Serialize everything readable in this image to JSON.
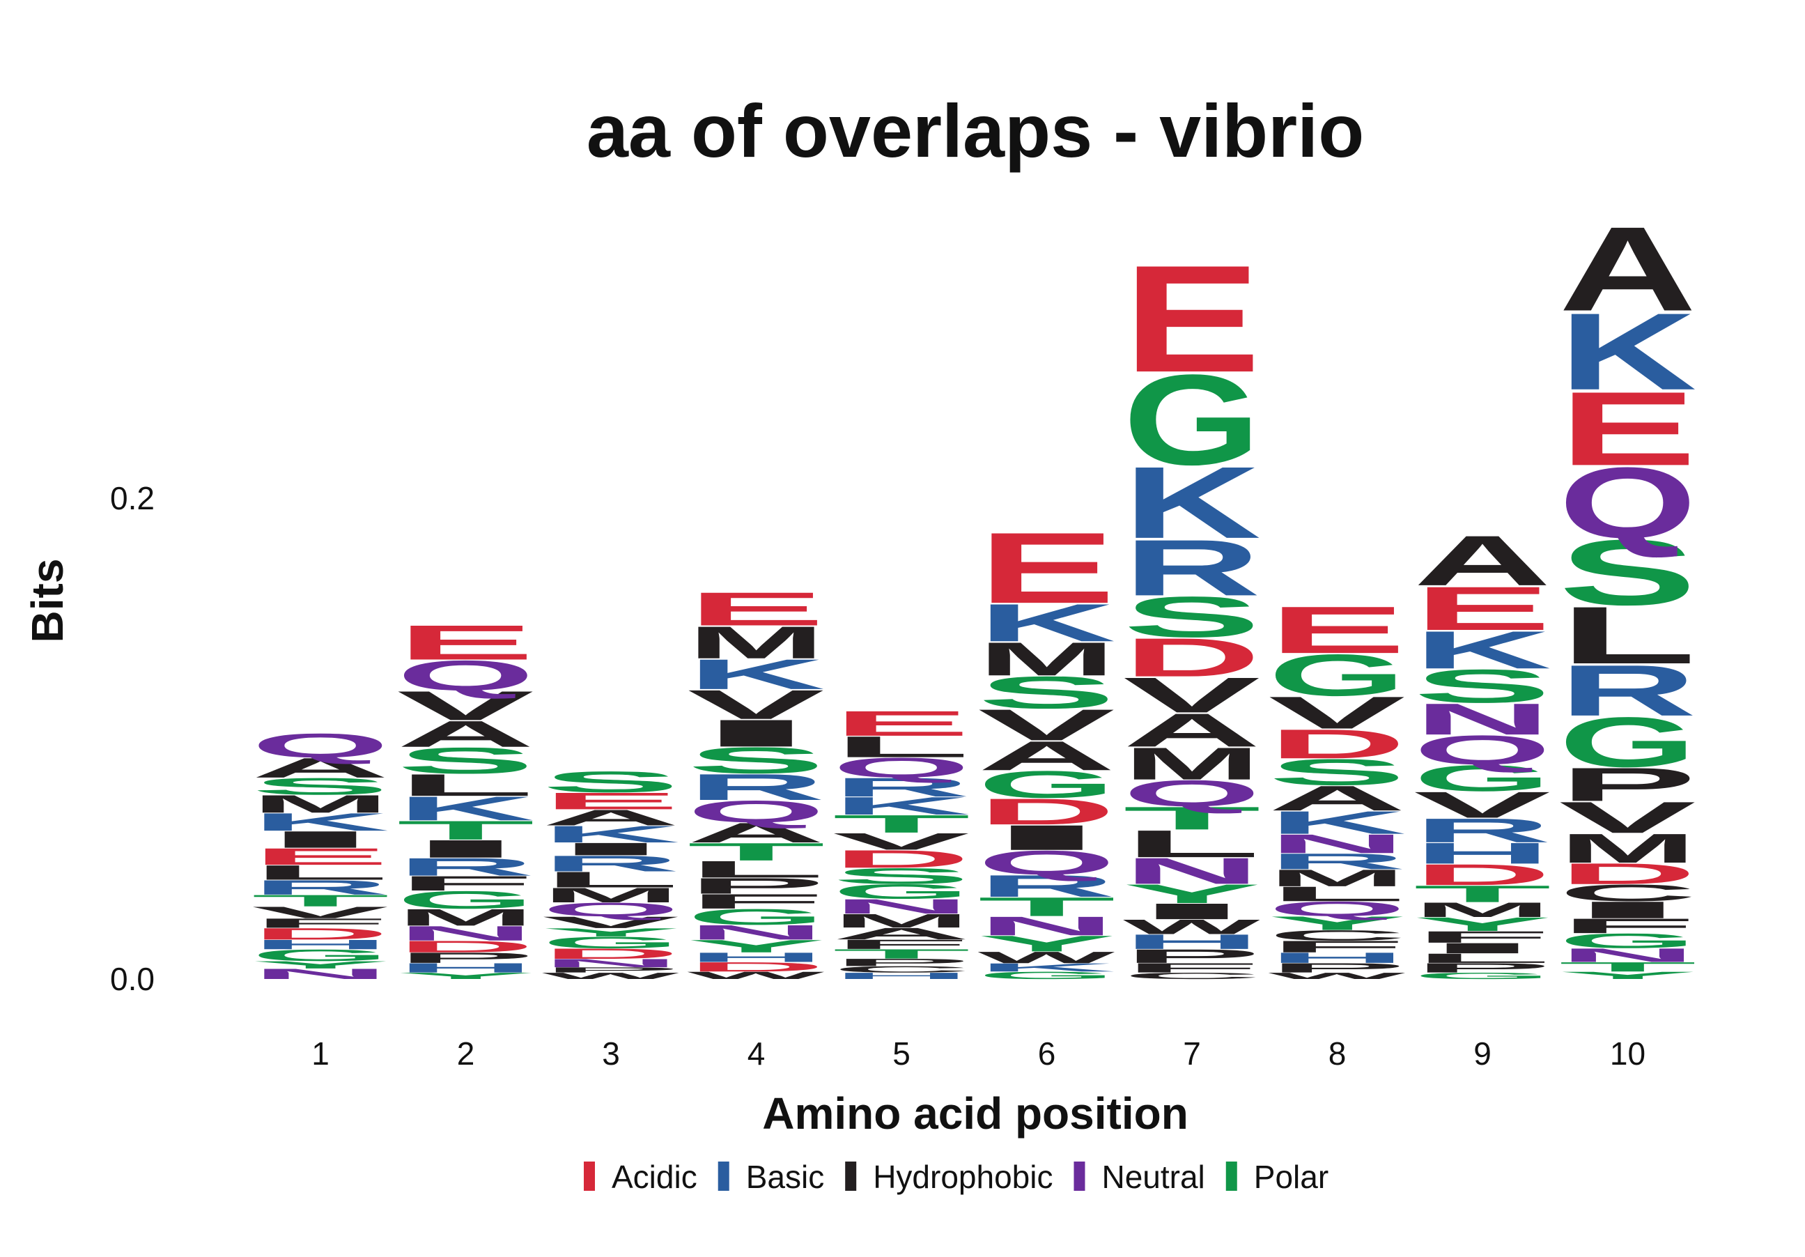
{
  "chart_data": {
    "type": "sequence-logo",
    "title": "aa of overlaps - vibrio",
    "xlabel": "Amino acid position",
    "ylabel": "Bits",
    "ylim": [
      0,
      0.3
    ],
    "yticks": [
      {
        "value": 0.0,
        "label": "0.0"
      },
      {
        "value": 0.2,
        "label": "0.2"
      }
    ],
    "grid": false,
    "legend_position": "bottom",
    "legend": [
      {
        "name": "Acidic",
        "color": "#D62839"
      },
      {
        "name": "Basic",
        "color": "#2A5D9F"
      },
      {
        "name": "Hydrophobic",
        "color": "#231F20"
      },
      {
        "name": "Neutral",
        "color": "#6A2C9C"
      },
      {
        "name": "Polar",
        "color": "#109648"
      }
    ],
    "letter_groups": {
      "Acidic": [
        "D",
        "E"
      ],
      "Basic": [
        "H",
        "K",
        "R"
      ],
      "Hydrophobic": [
        "A",
        "C",
        "F",
        "I",
        "L",
        "M",
        "P",
        "V",
        "W"
      ],
      "Neutral": [
        "N",
        "Q"
      ],
      "Polar": [
        "G",
        "S",
        "T",
        "Y"
      ]
    },
    "positions": [
      {
        "label": "1",
        "letters": [
          {
            "aa": "N",
            "bits": 0.0044
          },
          {
            "aa": "Y",
            "bits": 0.0031
          },
          {
            "aa": "G",
            "bits": 0.0049
          },
          {
            "aa": "H",
            "bits": 0.004
          },
          {
            "aa": "D",
            "bits": 0.0049
          },
          {
            "aa": "F",
            "bits": 0.004
          },
          {
            "aa": "V",
            "bits": 0.0049
          },
          {
            "aa": "T",
            "bits": 0.0049
          },
          {
            "aa": "R",
            "bits": 0.0062
          },
          {
            "aa": "L",
            "bits": 0.0062
          },
          {
            "aa": "E",
            "bits": 0.0071
          },
          {
            "aa": "I",
            "bits": 0.0071
          },
          {
            "aa": "K",
            "bits": 0.0075
          },
          {
            "aa": "M",
            "bits": 0.0075
          },
          {
            "aa": "S",
            "bits": 0.0071
          },
          {
            "aa": "A",
            "bits": 0.0084
          },
          {
            "aa": "Q",
            "bits": 0.0102
          }
        ]
      },
      {
        "label": "2",
        "letters": [
          {
            "aa": "Y",
            "bits": 0.0027
          },
          {
            "aa": "H",
            "bits": 0.004
          },
          {
            "aa": "P",
            "bits": 0.0044
          },
          {
            "aa": "D",
            "bits": 0.0049
          },
          {
            "aa": "N",
            "bits": 0.0062
          },
          {
            "aa": "M",
            "bits": 0.0071
          },
          {
            "aa": "G",
            "bits": 0.0075
          },
          {
            "aa": "F",
            "bits": 0.0062
          },
          {
            "aa": "R",
            "bits": 0.0075
          },
          {
            "aa": "I",
            "bits": 0.0075
          },
          {
            "aa": "T",
            "bits": 0.008
          },
          {
            "aa": "K",
            "bits": 0.0102
          },
          {
            "aa": "L",
            "bits": 0.0093
          },
          {
            "aa": "S",
            "bits": 0.0111
          },
          {
            "aa": "A",
            "bits": 0.0111
          },
          {
            "aa": "V",
            "bits": 0.0124
          },
          {
            "aa": "Q",
            "bits": 0.0128
          },
          {
            "aa": "E",
            "bits": 0.0147
          }
        ]
      },
      {
        "label": "3",
        "letters": [
          {
            "aa": "W",
            "bits": 0.0027
          },
          {
            "aa": "P",
            "bits": 0.0022
          },
          {
            "aa": "N",
            "bits": 0.0035
          },
          {
            "aa": "D",
            "bits": 0.0044
          },
          {
            "aa": "G",
            "bits": 0.0049
          },
          {
            "aa": "Y",
            "bits": 0.0035
          },
          {
            "aa": "V",
            "bits": 0.0049
          },
          {
            "aa": "Q",
            "bits": 0.0058
          },
          {
            "aa": "M",
            "bits": 0.0062
          },
          {
            "aa": "L",
            "bits": 0.0067
          },
          {
            "aa": "R",
            "bits": 0.0067
          },
          {
            "aa": "I",
            "bits": 0.0053
          },
          {
            "aa": "K",
            "bits": 0.0071
          },
          {
            "aa": "A",
            "bits": 0.0067
          },
          {
            "aa": "E",
            "bits": 0.0071
          },
          {
            "aa": "S",
            "bits": 0.0089
          }
        ]
      },
      {
        "label": "4",
        "letters": [
          {
            "aa": "W",
            "bits": 0.0031
          },
          {
            "aa": "D",
            "bits": 0.004
          },
          {
            "aa": "H",
            "bits": 0.004
          },
          {
            "aa": "Y",
            "bits": 0.0053
          },
          {
            "aa": "N",
            "bits": 0.0062
          },
          {
            "aa": "G",
            "bits": 0.0067
          },
          {
            "aa": "F",
            "bits": 0.0062
          },
          {
            "aa": "P",
            "bits": 0.0067
          },
          {
            "aa": "L",
            "bits": 0.0071
          },
          {
            "aa": "T",
            "bits": 0.0075
          },
          {
            "aa": "A",
            "bits": 0.0084
          },
          {
            "aa": "Q",
            "bits": 0.0093
          },
          {
            "aa": "R",
            "bits": 0.0111
          },
          {
            "aa": "S",
            "bits": 0.0111
          },
          {
            "aa": "I",
            "bits": 0.0115
          },
          {
            "aa": "V",
            "bits": 0.0124
          },
          {
            "aa": "K",
            "bits": 0.0128
          },
          {
            "aa": "M",
            "bits": 0.0137
          },
          {
            "aa": "E",
            "bits": 0.0142
          }
        ]
      },
      {
        "label": "5",
        "letters": [
          {
            "aa": "H",
            "bits": 0.0027
          },
          {
            "aa": "C",
            "bits": 0.0027
          },
          {
            "aa": "P",
            "bits": 0.0031
          },
          {
            "aa": "T",
            "bits": 0.004
          },
          {
            "aa": "F",
            "bits": 0.004
          },
          {
            "aa": "A",
            "bits": 0.0049
          },
          {
            "aa": "M",
            "bits": 0.0058
          },
          {
            "aa": "N",
            "bits": 0.0062
          },
          {
            "aa": "G",
            "bits": 0.0062
          },
          {
            "aa": "S",
            "bits": 0.0067
          },
          {
            "aa": "D",
            "bits": 0.0075
          },
          {
            "aa": "V",
            "bits": 0.0071
          },
          {
            "aa": "T",
            "bits": 0.0075
          },
          {
            "aa": "K",
            "bits": 0.0075
          },
          {
            "aa": "R",
            "bits": 0.008
          },
          {
            "aa": "Q",
            "bits": 0.0084
          },
          {
            "aa": "L",
            "bits": 0.0089
          },
          {
            "aa": "E",
            "bits": 0.0106
          }
        ]
      },
      {
        "label": "6",
        "letters": [
          {
            "aa": "G",
            "bits": 0.0031
          },
          {
            "aa": "K",
            "bits": 0.0035
          },
          {
            "aa": "W",
            "bits": 0.0049
          },
          {
            "aa": "Y",
            "bits": 0.0067
          },
          {
            "aa": "N",
            "bits": 0.008
          },
          {
            "aa": "T",
            "bits": 0.008
          },
          {
            "aa": "R",
            "bits": 0.0093
          },
          {
            "aa": "Q",
            "bits": 0.0102
          },
          {
            "aa": "I",
            "bits": 0.0106
          },
          {
            "aa": "D",
            "bits": 0.0111
          },
          {
            "aa": "G",
            "bits": 0.0115
          },
          {
            "aa": "A",
            "bits": 0.0124
          },
          {
            "aa": "V",
            "bits": 0.0133
          },
          {
            "aa": "S",
            "bits": 0.0137
          },
          {
            "aa": "M",
            "bits": 0.0142
          },
          {
            "aa": "K",
            "bits": 0.016
          },
          {
            "aa": "E",
            "bits": 0.0302
          }
        ]
      },
      {
        "label": "7",
        "letters": [
          {
            "aa": "C",
            "bits": 0.0027
          },
          {
            "aa": "F",
            "bits": 0.004
          },
          {
            "aa": "P",
            "bits": 0.0058
          },
          {
            "aa": "H",
            "bits": 0.0062
          },
          {
            "aa": "W",
            "bits": 0.0062
          },
          {
            "aa": "I",
            "bits": 0.0067
          },
          {
            "aa": "Y",
            "bits": 0.008
          },
          {
            "aa": "N",
            "bits": 0.0111
          },
          {
            "aa": "L",
            "bits": 0.0115
          },
          {
            "aa": "T",
            "bits": 0.0097
          },
          {
            "aa": "Q",
            "bits": 0.0111
          },
          {
            "aa": "M",
            "bits": 0.0137
          },
          {
            "aa": "A",
            "bits": 0.0142
          },
          {
            "aa": "V",
            "bits": 0.015
          },
          {
            "aa": "D",
            "bits": 0.0164
          },
          {
            "aa": "S",
            "bits": 0.0173
          },
          {
            "aa": "R",
            "bits": 0.0239
          },
          {
            "aa": "K",
            "bits": 0.0306
          },
          {
            "aa": "G",
            "bits": 0.0386
          },
          {
            "aa": "E",
            "bits": 0.0457
          }
        ]
      },
      {
        "label": "8",
        "letters": [
          {
            "aa": "W",
            "bits": 0.0027
          },
          {
            "aa": "P",
            "bits": 0.004
          },
          {
            "aa": "H",
            "bits": 0.0044
          },
          {
            "aa": "F",
            "bits": 0.0049
          },
          {
            "aa": "C",
            "bits": 0.0044
          },
          {
            "aa": "Y",
            "bits": 0.0058
          },
          {
            "aa": "Q",
            "bits": 0.0062
          },
          {
            "aa": "L",
            "bits": 0.0062
          },
          {
            "aa": "M",
            "bits": 0.0071
          },
          {
            "aa": "R",
            "bits": 0.0067
          },
          {
            "aa": "N",
            "bits": 0.008
          },
          {
            "aa": "K",
            "bits": 0.0097
          },
          {
            "aa": "A",
            "bits": 0.0106
          },
          {
            "aa": "S",
            "bits": 0.0111
          },
          {
            "aa": "D",
            "bits": 0.0124
          },
          {
            "aa": "V",
            "bits": 0.0137
          },
          {
            "aa": "G",
            "bits": 0.0177
          },
          {
            "aa": "E",
            "bits": 0.02
          }
        ]
      },
      {
        "label": "9",
        "letters": [
          {
            "aa": "G",
            "bits": 0.0027
          },
          {
            "aa": "P",
            "bits": 0.004
          },
          {
            "aa": "L",
            "bits": 0.004
          },
          {
            "aa": "I",
            "bits": 0.0044
          },
          {
            "aa": "F",
            "bits": 0.0049
          },
          {
            "aa": "Y",
            "bits": 0.0058
          },
          {
            "aa": "M",
            "bits": 0.0062
          },
          {
            "aa": "T",
            "bits": 0.0071
          },
          {
            "aa": "D",
            "bits": 0.0089
          },
          {
            "aa": "H",
            "bits": 0.0089
          },
          {
            "aa": "R",
            "bits": 0.0102
          },
          {
            "aa": "V",
            "bits": 0.0111
          },
          {
            "aa": "G",
            "bits": 0.0111
          },
          {
            "aa": "Q",
            "bits": 0.0124
          },
          {
            "aa": "N",
            "bits": 0.0133
          },
          {
            "aa": "S",
            "bits": 0.0142
          },
          {
            "aa": "K",
            "bits": 0.016
          },
          {
            "aa": "E",
            "bits": 0.0186
          },
          {
            "aa": "A",
            "bits": 0.0213
          }
        ]
      },
      {
        "label": "10",
        "letters": [
          {
            "aa": "Y",
            "bits": 0.0031
          },
          {
            "aa": "T",
            "bits": 0.004
          },
          {
            "aa": "N",
            "bits": 0.0058
          },
          {
            "aa": "G",
            "bits": 0.0062
          },
          {
            "aa": "F",
            "bits": 0.0062
          },
          {
            "aa": "I",
            "bits": 0.0071
          },
          {
            "aa": "C",
            "bits": 0.0071
          },
          {
            "aa": "D",
            "bits": 0.0089
          },
          {
            "aa": "M",
            "bits": 0.0124
          },
          {
            "aa": "V",
            "bits": 0.0133
          },
          {
            "aa": "P",
            "bits": 0.0142
          },
          {
            "aa": "G",
            "bits": 0.0213
          },
          {
            "aa": "R",
            "bits": 0.0217
          },
          {
            "aa": "L",
            "bits": 0.0244
          },
          {
            "aa": "S",
            "bits": 0.0279
          },
          {
            "aa": "Q",
            "bits": 0.0302
          },
          {
            "aa": "E",
            "bits": 0.0315
          },
          {
            "aa": "K",
            "bits": 0.0328
          },
          {
            "aa": "A",
            "bits": 0.036
          }
        ]
      }
    ]
  }
}
